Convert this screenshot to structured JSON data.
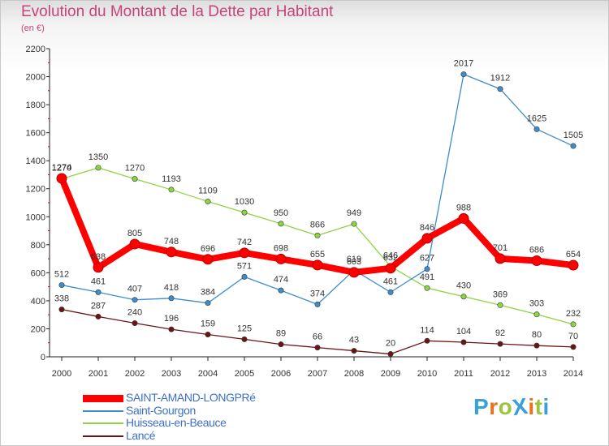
{
  "title": "Evolution du Montant de la Dette par Habitant",
  "subtitle": "(en €)",
  "logo": {
    "text": "ProXiti",
    "colors": [
      "#3aa0d8",
      "#e8731a",
      "#9bc43c",
      "#3aa0d8",
      "#e8731a",
      "#9bc43c",
      "#3aa0d8"
    ]
  },
  "chart_data": {
    "type": "line",
    "title": "Evolution du Montant de la Dette par Habitant",
    "subtitle": "(en €)",
    "xlabel": "",
    "ylabel": "",
    "ylim": [
      0,
      2200
    ],
    "yticks": [
      0,
      200,
      400,
      600,
      800,
      1000,
      1200,
      1400,
      1600,
      1800,
      2000,
      2200
    ],
    "grid": false,
    "legend_position": "bottom-left",
    "x": [
      "2000",
      "2001",
      "2002",
      "2003",
      "2004",
      "2005",
      "2006",
      "2007",
      "2008",
      "2009",
      "2010",
      "2011",
      "2012",
      "2013",
      "2014"
    ],
    "series": [
      {
        "name": "SAINT-AMAND-LONGPRé",
        "color": "#ff0000",
        "values": [
          1274,
          638,
          805,
          748,
          696,
          742,
          698,
          655,
          603,
          632,
          846,
          988,
          701,
          686,
          654
        ]
      },
      {
        "name": "Saint-Gourgon",
        "color": "#3d8ccc",
        "values": [
          512,
          461,
          407,
          418,
          384,
          571,
          474,
          374,
          619,
          461,
          627,
          2017,
          1912,
          1625,
          1505
        ]
      },
      {
        "name": "Huisseau-en-Beauce",
        "color": "#8ed343",
        "values": [
          1270,
          1350,
          1270,
          1193,
          1109,
          1030,
          950,
          866,
          949,
          646,
          491,
          430,
          369,
          303,
          232
        ]
      },
      {
        "name": "Lancé",
        "color": "#6b1414",
        "values": [
          338,
          287,
          240,
          196,
          159,
          125,
          89,
          66,
          43,
          20,
          114,
          104,
          92,
          80,
          70
        ]
      }
    ]
  }
}
